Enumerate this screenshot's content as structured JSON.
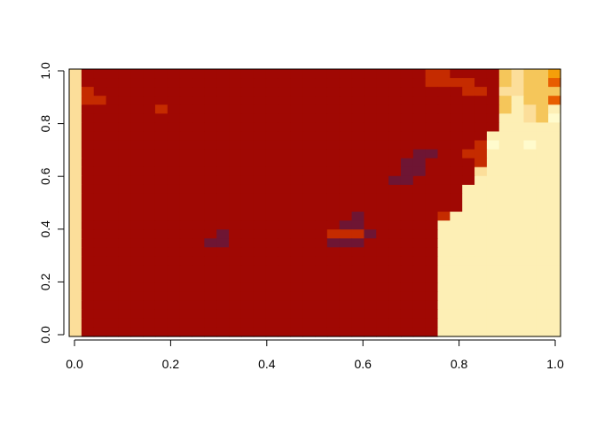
{
  "chart_data": {
    "type": "heatmap",
    "title": "",
    "xlabel": "",
    "ylabel": "",
    "xlim": [
      0.0,
      1.0
    ],
    "ylim": [
      0.0,
      1.0
    ],
    "x_ticks": [
      {
        "value": 0.0,
        "label": "0.0"
      },
      {
        "value": 0.2,
        "label": "0.2"
      },
      {
        "value": 0.4,
        "label": "0.4"
      },
      {
        "value": 0.6,
        "label": "0.6"
      },
      {
        "value": 0.8,
        "label": "0.8"
      },
      {
        "value": 1.0,
        "label": "1.0"
      }
    ],
    "y_ticks": [
      {
        "value": 0.0,
        "label": "0.0"
      },
      {
        "value": 0.2,
        "label": "0.2"
      },
      {
        "value": 0.4,
        "label": "0.4"
      },
      {
        "value": 0.6,
        "label": "0.6"
      },
      {
        "value": 0.8,
        "label": "0.8"
      },
      {
        "value": 1.0,
        "label": "1.0"
      }
    ],
    "palette": [
      "#6E1533",
      "#A00803",
      "#C52B00",
      "#E85D00",
      "#F59E0A",
      "#F5C65A",
      "#FCDE9A",
      "#FDEFB5",
      "#FFFBCD"
    ],
    "grid_cols": 40,
    "grid_rows": 30,
    "grid": [
      "6111111111111111111111111111122111156554",
      "6111111111111111111111111111122221156553",
      "6211111111111111111111111111111122166555",
      "6221111111111111111111111111111111157553",
      "6111111211111111111111111111111111157657",
      "6111111111111111111111111111111111177658",
      "6111111111111111111111111111111111177777",
      "6111111111111111111111111111111111777777",
      "6111111111111111111111111111111112877877",
      "6111111111111111111111111111001122777777",
      "6111111111111111111111111110011112777777",
      "6111111111111111111111111110011116777777",
      "6111111111111111111111111100111117777777",
      "6111111111111111111111111111111177777777",
      "6111111111111111111111111111111177777777",
      "6111111111111111111111111111111177777777",
      "6111111111111111111111101111112777777777",
      "6111111111111111111111001111117777777777",
      "6111111111110111111112220111117777777777",
      "6111111111100111111110001111117777777777",
      "6111111111111111111111111111117777777777",
      "6111111111111111111111111111117777777777",
      "6111111111111111111111111111117777777777",
      "6111111111111111111111111111117777777777",
      "6111111111111111111111111111117777777777",
      "6111111111111111111111111111117777777777",
      "6111111111111111111111111111117777777777",
      "6111111111111111111111111111117777777777",
      "6111111111111111111111111111117777777777",
      "6111111111111111111111111111117777777777"
    ]
  }
}
